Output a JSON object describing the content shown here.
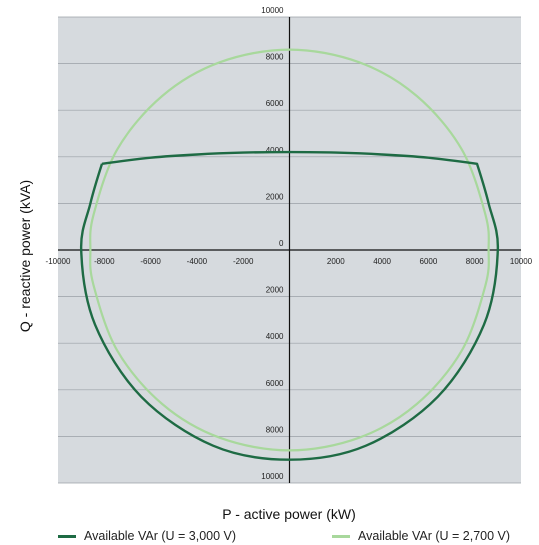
{
  "chart_data": {
    "type": "line",
    "xlabel": "P - active power (kW)",
    "ylabel": "Q - reactive power (kVA)",
    "xlim": [
      -10000,
      10000
    ],
    "ylim": [
      -10000,
      10000
    ],
    "x_ticks": [
      -10000,
      -8000,
      -6000,
      -4000,
      -2000,
      2000,
      4000,
      6000,
      8000,
      10000
    ],
    "x_tick_labels": [
      "-10000",
      "-8000",
      "-6000",
      "-4000",
      "-2000",
      "2000",
      "4000",
      "6000",
      "8000",
      "10000"
    ],
    "y_ticks": [
      10000,
      8000,
      6000,
      4000,
      2000,
      0,
      -2000,
      -4000,
      -6000,
      -8000,
      -10000
    ],
    "y_tick_labels": [
      "10000",
      "8000",
      "6000",
      "4000",
      "2000",
      "0",
      "2000",
      "4000",
      "6000",
      "8000",
      "10000"
    ],
    "grid": "horizontal",
    "legend_position": "bottom",
    "series": [
      {
        "name": "Available VAr (U = 3,000 V)",
        "color": "#1e6b44",
        "points": [
          [
            -8100,
            3700
          ],
          [
            -6000,
            3960
          ],
          [
            -4000,
            4100
          ],
          [
            -2000,
            4180
          ],
          [
            0,
            4200
          ],
          [
            2000,
            4180
          ],
          [
            4000,
            4100
          ],
          [
            6000,
            3960
          ],
          [
            8100,
            3700
          ],
          [
            8600,
            2000
          ],
          [
            9000,
            0
          ],
          [
            8400,
            -3200
          ],
          [
            6400,
            -6300
          ],
          [
            3300,
            -8400
          ],
          [
            0,
            -9000
          ],
          [
            -3300,
            -8400
          ],
          [
            -6400,
            -6300
          ],
          [
            -8400,
            -3200
          ],
          [
            -9000,
            0
          ],
          [
            -8600,
            2000
          ],
          [
            -8100,
            3700
          ]
        ]
      },
      {
        "name": "Available VAr (U = 2,700 V)",
        "color": "#a8d89c",
        "points": [
          [
            0,
            8600
          ],
          [
            3000,
            8060
          ],
          [
            5500,
            6610
          ],
          [
            7450,
            4300
          ],
          [
            8470,
            1490
          ],
          [
            8600,
            0
          ],
          [
            8470,
            -1490
          ],
          [
            7450,
            -4300
          ],
          [
            5500,
            -6610
          ],
          [
            3000,
            -8060
          ],
          [
            0,
            -8600
          ],
          [
            -3000,
            -8060
          ],
          [
            -5500,
            -6610
          ],
          [
            -7450,
            -4300
          ],
          [
            -8470,
            -1490
          ],
          [
            -8600,
            0
          ],
          [
            -8470,
            1490
          ],
          [
            -7450,
            4300
          ],
          [
            -5500,
            6610
          ],
          [
            -3000,
            8060
          ],
          [
            0,
            8600
          ]
        ]
      }
    ]
  }
}
